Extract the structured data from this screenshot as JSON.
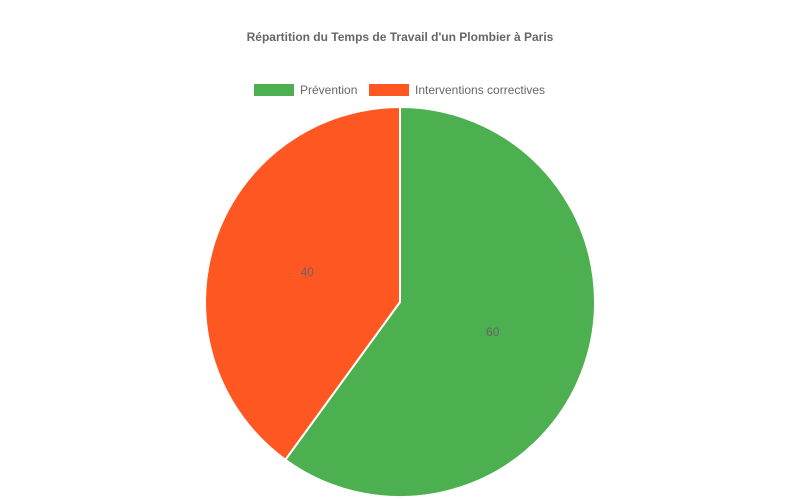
{
  "chart_data": {
    "type": "pie",
    "title": "Répartition du Temps de Travail d'un Plombier à Paris",
    "legend_position": "top",
    "categories": [
      "Prévention",
      "Interventions correctives"
    ],
    "values": [
      60,
      40
    ],
    "colors": [
      "#4CAF50",
      "#FF5722"
    ],
    "border_color": "#ffffff",
    "data_labels": [
      "60",
      "40"
    ]
  }
}
